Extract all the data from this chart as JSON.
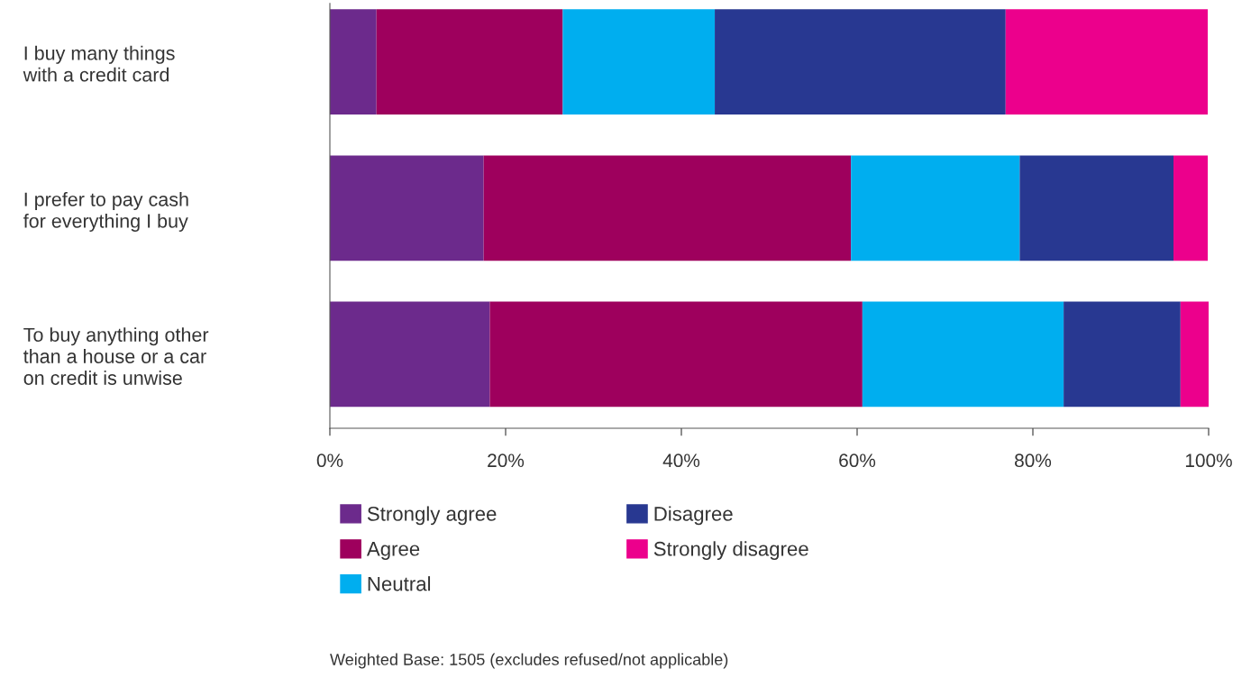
{
  "chart_data": {
    "type": "bar",
    "orientation": "horizontal",
    "stacked": true,
    "categories": [
      "I buy many things\nwith a credit card",
      "I prefer to pay cash\nfor everything I buy",
      "To buy anything other\nthan a house or a car\non credit is unwise"
    ],
    "series": [
      {
        "name": "Strongly agree",
        "color": "#6c2a8c",
        "values": [
          5.3,
          17.5,
          18.2
        ]
      },
      {
        "name": "Agree",
        "color": "#9e005d",
        "values": [
          21.2,
          41.8,
          42.4
        ]
      },
      {
        "name": "Neutral",
        "color": "#00aeef",
        "values": [
          17.3,
          19.2,
          22.9
        ]
      },
      {
        "name": "Disagree",
        "color": "#283891",
        "values": [
          33.1,
          17.5,
          13.3
        ]
      },
      {
        "name": "Strongly disagree",
        "color": "#ec008c",
        "values": [
          23.0,
          3.9,
          3.3
        ]
      }
    ],
    "xlim": [
      0,
      100
    ],
    "xticks": [
      {
        "value": 0,
        "label": "0%"
      },
      {
        "value": 20,
        "label": "20%"
      },
      {
        "value": 40,
        "label": "40%"
      },
      {
        "value": 60,
        "label": "60%"
      },
      {
        "value": 80,
        "label": "80%"
      },
      {
        "value": 100,
        "label": "100%"
      }
    ],
    "grid": false,
    "legend": "bottom",
    "annotations": [
      "Weighted Base: 1505 (excludes refused/not applicable)"
    ]
  }
}
